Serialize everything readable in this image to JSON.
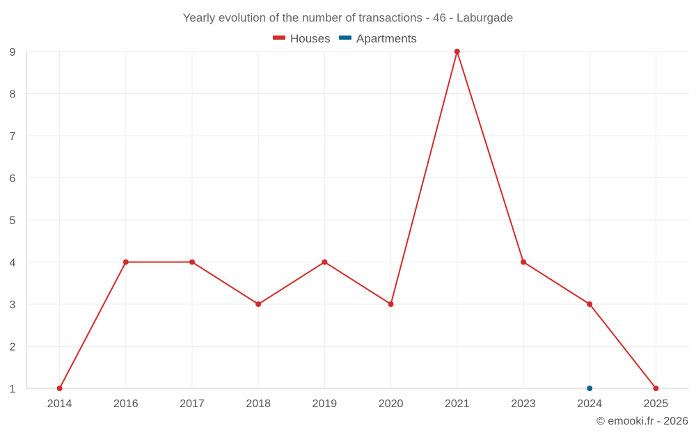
{
  "chart_data": {
    "type": "line",
    "title": "Yearly evolution of the number of transactions - 46 - Laburgade",
    "categories": [
      "2014",
      "2016",
      "2017",
      "2018",
      "2019",
      "2020",
      "2021",
      "2023",
      "2024",
      "2025"
    ],
    "series": [
      {
        "name": "Houses",
        "color": "#d32a2a",
        "values": [
          1,
          4,
          4,
          3,
          4,
          3,
          9,
          4,
          3,
          1
        ]
      },
      {
        "name": "Apartments",
        "color": "#0a6496",
        "values": [
          null,
          null,
          null,
          null,
          null,
          null,
          null,
          null,
          1,
          null
        ]
      }
    ],
    "ylim": [
      1,
      9
    ],
    "yticks": [
      1,
      2,
      3,
      4,
      5,
      6,
      7,
      8,
      9
    ],
    "xlabel": "",
    "ylabel": "",
    "grid": true,
    "legend": "top-center"
  },
  "credit": "© emooki.fr - 2026"
}
